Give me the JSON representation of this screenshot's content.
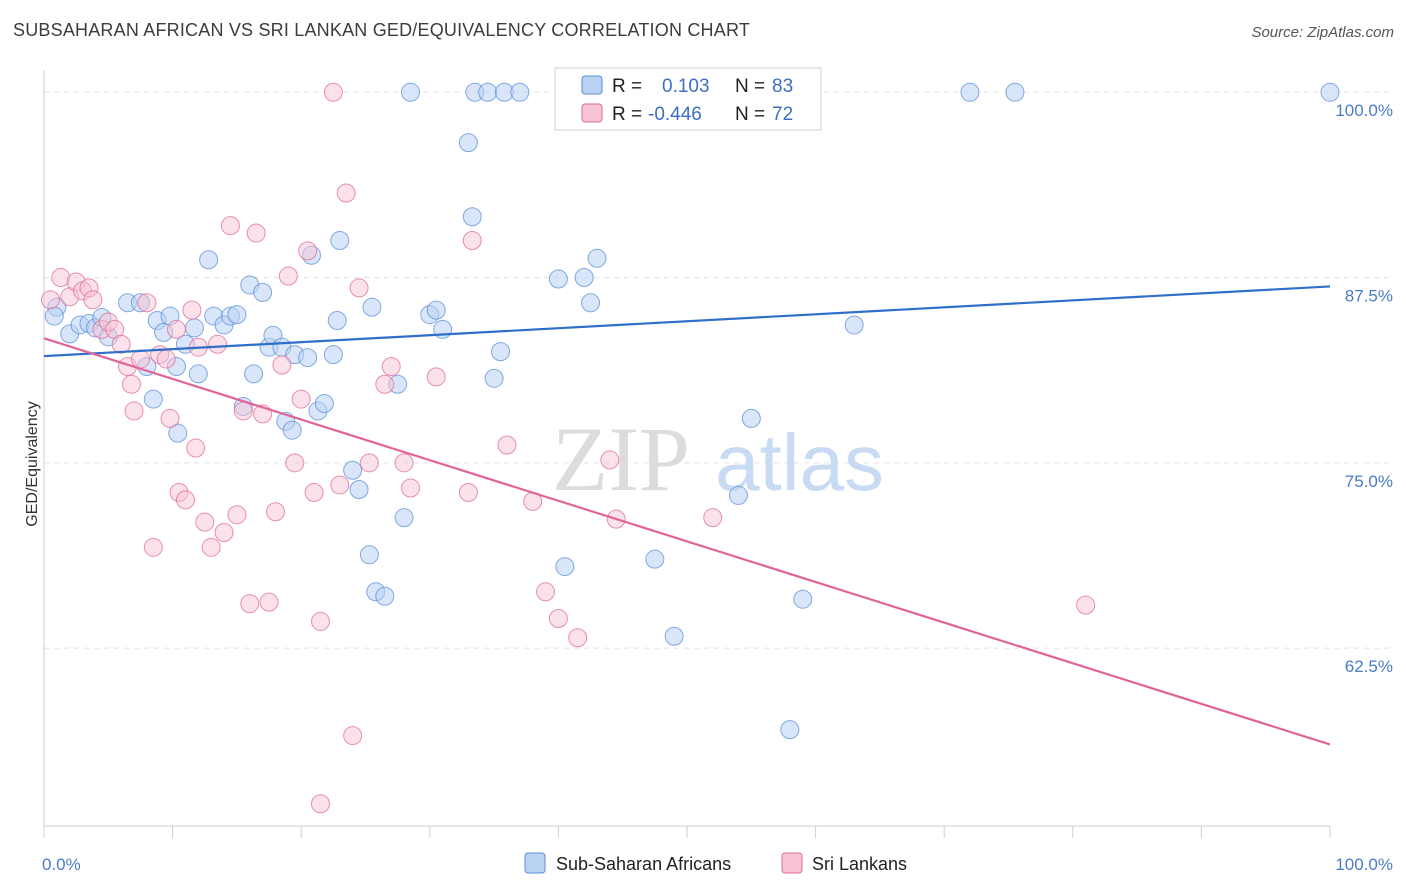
{
  "title": "SUBSAHARAN AFRICAN VS SRI LANKAN GED/EQUIVALENCY CORRELATION CHART",
  "source": "Source: ZipAtlas.com",
  "watermark": {
    "zip": "ZIP",
    "atlas": "atlas"
  },
  "legend": {
    "r_label": "R =",
    "n_label": "N =",
    "series": [
      {
        "name": "Sub-Saharan Africans",
        "r": "0.103",
        "n": "83",
        "color": "#5b8fd8",
        "fill": "#b9d2f4"
      },
      {
        "name": "Sri Lankans",
        "r": "-0.446",
        "n": "72",
        "color": "#e06c98",
        "fill": "#f6c4d5"
      }
    ]
  },
  "chart_data": {
    "type": "scatter",
    "title": "SUBSAHARAN AFRICAN VS SRI LANKAN GED/EQUIVALENCY CORRELATION CHART",
    "xlabel": "",
    "ylabel": "GED/Equivalency",
    "xlim": [
      0,
      100
    ],
    "ylim": [
      50.5,
      101.5
    ],
    "x_tick_labels": [
      "0.0%",
      "100.0%"
    ],
    "y_tick_labels": [
      "62.5%",
      "75.0%",
      "87.5%",
      "100.0%"
    ],
    "y_ticks": [
      62.5,
      75.0,
      87.5,
      100.0
    ],
    "grid": true,
    "legend_position": "top-center",
    "series": [
      {
        "name": "Sub-Saharan Africans",
        "color": "#5b8fd8",
        "trend": {
          "x": [
            0,
            100
          ],
          "y": [
            82.2,
            86.9
          ]
        },
        "points": [
          [
            1.0,
            85.5
          ],
          [
            0.8,
            84.9
          ],
          [
            2.0,
            83.7
          ],
          [
            2.8,
            84.3
          ],
          [
            3.5,
            84.4
          ],
          [
            4.0,
            84.1
          ],
          [
            4.5,
            84.8
          ],
          [
            5.0,
            83.5
          ],
          [
            6.5,
            85.8
          ],
          [
            7.5,
            85.8
          ],
          [
            8.0,
            81.5
          ],
          [
            8.5,
            79.3
          ],
          [
            8.8,
            84.6
          ],
          [
            9.3,
            83.8
          ],
          [
            9.8,
            84.9
          ],
          [
            10.3,
            81.5
          ],
          [
            10.4,
            77.0
          ],
          [
            11.0,
            83.0
          ],
          [
            11.7,
            84.1
          ],
          [
            12.0,
            81.0
          ],
          [
            12.8,
            88.7
          ],
          [
            13.2,
            84.9
          ],
          [
            14.0,
            84.3
          ],
          [
            14.5,
            84.9
          ],
          [
            15.0,
            85.0
          ],
          [
            15.5,
            78.8
          ],
          [
            16.0,
            87.0
          ],
          [
            16.3,
            81.0
          ],
          [
            17.0,
            86.5
          ],
          [
            17.5,
            82.8
          ],
          [
            17.8,
            83.6
          ],
          [
            18.5,
            82.8
          ],
          [
            18.8,
            77.8
          ],
          [
            19.3,
            77.2
          ],
          [
            19.5,
            82.3
          ],
          [
            20.5,
            82.1
          ],
          [
            20.8,
            89.0
          ],
          [
            21.3,
            78.5
          ],
          [
            21.8,
            79.0
          ],
          [
            22.5,
            82.3
          ],
          [
            22.8,
            84.6
          ],
          [
            23.0,
            90.0
          ],
          [
            24.0,
            74.5
          ],
          [
            24.5,
            73.2
          ],
          [
            25.3,
            68.8
          ],
          [
            25.5,
            85.5
          ],
          [
            25.8,
            66.3
          ],
          [
            26.5,
            66.0
          ],
          [
            27.5,
            80.3
          ],
          [
            28.0,
            71.3
          ],
          [
            28.5,
            100.0
          ],
          [
            30.0,
            85.0
          ],
          [
            30.5,
            85.3
          ],
          [
            31.0,
            84.0
          ],
          [
            33.0,
            96.6
          ],
          [
            33.3,
            91.6
          ],
          [
            33.5,
            100.0
          ],
          [
            34.5,
            100.0
          ],
          [
            35.0,
            80.7
          ],
          [
            35.5,
            82.5
          ],
          [
            35.8,
            100.0
          ],
          [
            37.0,
            100.0
          ],
          [
            40.0,
            87.4
          ],
          [
            40.5,
            68.0
          ],
          [
            42.0,
            87.5
          ],
          [
            42.5,
            85.8
          ],
          [
            43.0,
            88.8
          ],
          [
            45.5,
            100.0
          ],
          [
            47.5,
            68.5
          ],
          [
            49.0,
            63.3
          ],
          [
            54.0,
            72.8
          ],
          [
            55.0,
            78.0
          ],
          [
            58.0,
            57.0
          ],
          [
            59.0,
            65.8
          ],
          [
            63.0,
            84.3
          ],
          [
            72.0,
            100.0
          ],
          [
            75.5,
            100.0
          ],
          [
            100.0,
            100.0
          ]
        ]
      },
      {
        "name": "Sri Lankans",
        "color": "#e06c98",
        "trend": {
          "x": [
            0,
            100
          ],
          "y": [
            83.4,
            56.0
          ]
        },
        "points": [
          [
            0.5,
            86.0
          ],
          [
            1.3,
            87.5
          ],
          [
            2.0,
            86.2
          ],
          [
            2.5,
            87.2
          ],
          [
            3.0,
            86.6
          ],
          [
            3.5,
            86.8
          ],
          [
            3.8,
            86.0
          ],
          [
            4.5,
            84.0
          ],
          [
            5.0,
            84.5
          ],
          [
            5.5,
            84.0
          ],
          [
            6.0,
            83.0
          ],
          [
            6.5,
            81.5
          ],
          [
            6.8,
            80.3
          ],
          [
            7.0,
            78.5
          ],
          [
            7.5,
            82.0
          ],
          [
            8.0,
            85.8
          ],
          [
            8.5,
            69.3
          ],
          [
            9.0,
            82.3
          ],
          [
            9.5,
            82.0
          ],
          [
            9.8,
            78.0
          ],
          [
            10.3,
            84.0
          ],
          [
            10.5,
            73.0
          ],
          [
            11.0,
            72.5
          ],
          [
            11.5,
            85.3
          ],
          [
            11.8,
            76.0
          ],
          [
            12.0,
            82.8
          ],
          [
            12.5,
            71.0
          ],
          [
            13.0,
            69.3
          ],
          [
            13.5,
            83.0
          ],
          [
            14.0,
            70.3
          ],
          [
            14.5,
            91.0
          ],
          [
            15.0,
            71.5
          ],
          [
            15.5,
            78.5
          ],
          [
            16.0,
            65.5
          ],
          [
            16.5,
            90.5
          ],
          [
            17.0,
            78.3
          ],
          [
            17.5,
            65.6
          ],
          [
            18.0,
            71.7
          ],
          [
            18.5,
            81.6
          ],
          [
            19.0,
            87.6
          ],
          [
            19.5,
            75.0
          ],
          [
            20.0,
            79.3
          ],
          [
            20.5,
            89.3
          ],
          [
            21.0,
            73.0
          ],
          [
            21.5,
            64.3
          ],
          [
            22.5,
            100.0
          ],
          [
            23.0,
            73.5
          ],
          [
            23.5,
            93.2
          ],
          [
            24.0,
            56.6
          ],
          [
            24.5,
            86.8
          ],
          [
            25.3,
            75.0
          ],
          [
            26.5,
            80.3
          ],
          [
            27.0,
            81.5
          ],
          [
            28.0,
            75.0
          ],
          [
            28.5,
            73.3
          ],
          [
            30.5,
            80.8
          ],
          [
            33.0,
            73.0
          ],
          [
            33.3,
            90.0
          ],
          [
            36.0,
            76.2
          ],
          [
            38.0,
            72.4
          ],
          [
            39.0,
            66.3
          ],
          [
            40.0,
            64.5
          ],
          [
            41.5,
            63.2
          ],
          [
            44.0,
            75.2
          ],
          [
            44.5,
            71.2
          ],
          [
            52.0,
            71.3
          ],
          [
            81.0,
            65.4
          ],
          [
            21.5,
            52.0
          ]
        ]
      }
    ]
  }
}
